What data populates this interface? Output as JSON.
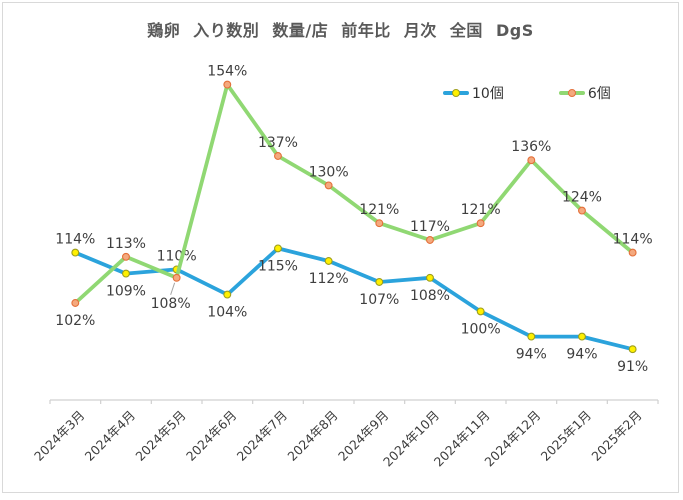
{
  "frame": {
    "border_color": "#d9d9d9",
    "background": "#ffffff"
  },
  "chart_data": {
    "type": "line",
    "title": "鶏卵 入り数別 数量/店 前年比 月次 全国 DgS",
    "title_color": "#595959",
    "unit": "%",
    "categories": [
      "2024年3月",
      "2024年4月",
      "2024年5月",
      "2024年6月",
      "2024年7月",
      "2024年8月",
      "2024年9月",
      "2024年10月",
      "2024年11月",
      "2024年12月",
      "2025年1月",
      "2025年2月"
    ],
    "series": [
      {
        "name": "10個",
        "color": "#2ba3dc",
        "marker_fill": "#fff000",
        "marker_stroke": "#9e9e1c",
        "values": [
          114,
          109,
          110,
          104,
          115,
          112,
          107,
          108,
          100,
          94,
          94,
          91
        ],
        "label_sides": [
          "above",
          "below",
          "above",
          "below",
          "below",
          "below",
          "below",
          "below",
          "below",
          "below",
          "below",
          "below"
        ]
      },
      {
        "name": "6個",
        "color": "#90d873",
        "marker_fill": "#f4a97e",
        "marker_stroke": "#e4703a",
        "values": [
          102,
          113,
          108,
          154,
          137,
          130,
          121,
          117,
          121,
          136,
          124,
          114
        ],
        "label_sides": [
          "below",
          "above",
          "below-leader",
          "above",
          "above",
          "above",
          "above",
          "above",
          "above",
          "above",
          "above",
          "above"
        ]
      }
    ],
    "data_labels": true,
    "label_color": "#3f3f3f",
    "axis_color": "#d0d0d0",
    "tick_label_color": "#3d3d3d",
    "grid": false,
    "legend_position": "top-right",
    "ylim": [
      85,
      160
    ]
  }
}
